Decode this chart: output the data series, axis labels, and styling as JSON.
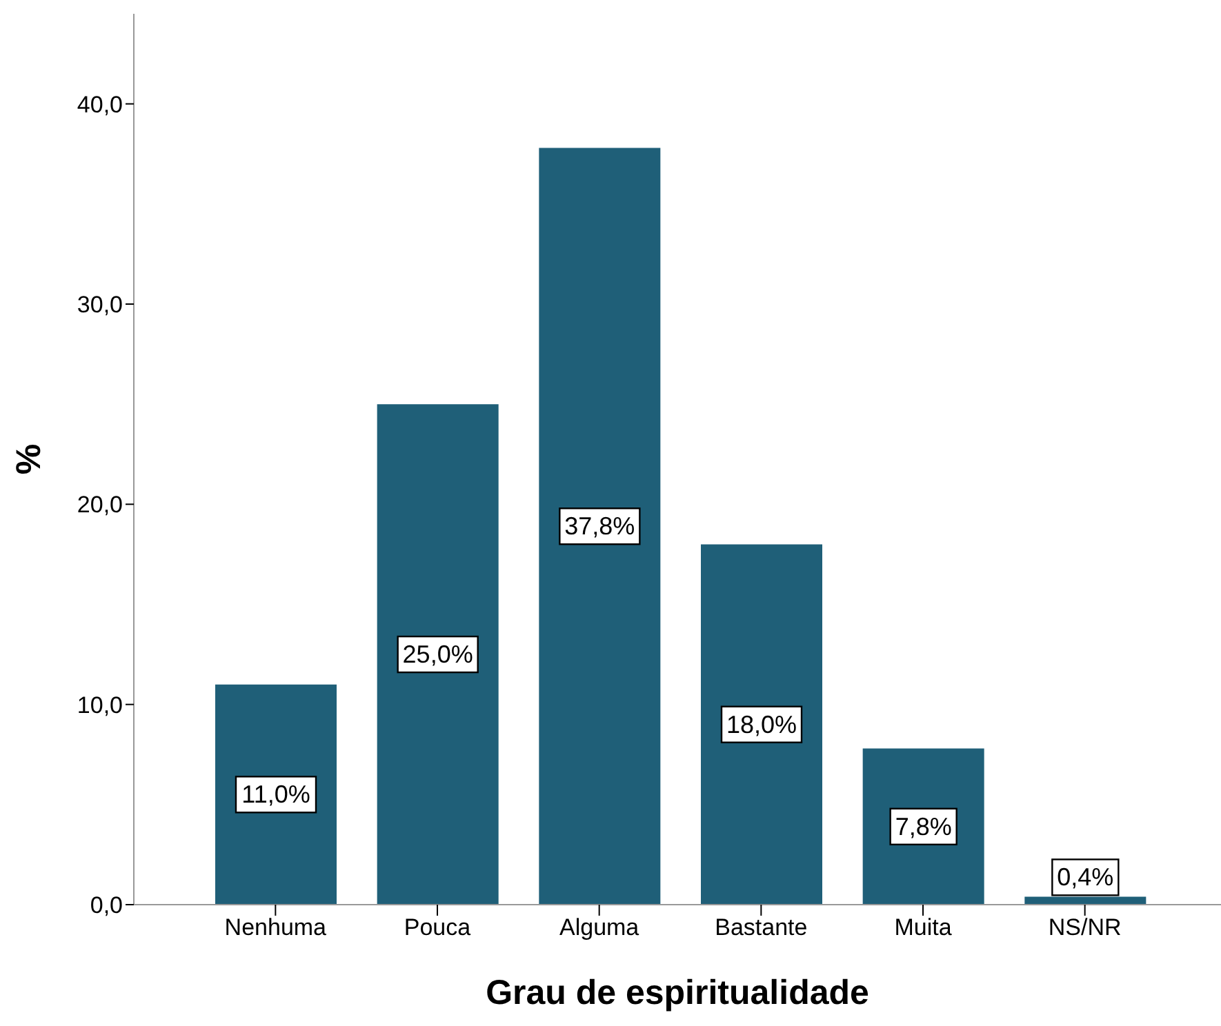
{
  "chart_data": {
    "type": "bar",
    "xlabel": "Grau de espiritualidade",
    "ylabel": "%",
    "categories": [
      "Nenhuma",
      "Pouca",
      "Alguma",
      "Bastante",
      "Muita",
      "NS/NR"
    ],
    "values": [
      11.0,
      25.0,
      37.8,
      18.0,
      7.8,
      0.4
    ],
    "value_labels": [
      "11,0%",
      "25,0%",
      "37,8%",
      "18,0%",
      "7,8%",
      "0,4%"
    ],
    "color": "#1f5f78",
    "ylim": [
      0,
      44.5
    ],
    "yticks": [
      {
        "value": 0,
        "label": "0,0"
      },
      {
        "value": 10,
        "label": "10,0"
      },
      {
        "value": 20,
        "label": "20,0"
      },
      {
        "value": 30,
        "label": "30,0"
      },
      {
        "value": 40,
        "label": "40,0"
      }
    ],
    "grid": false,
    "legend": false
  }
}
